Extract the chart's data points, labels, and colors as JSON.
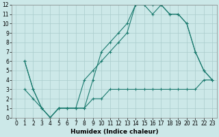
{
  "xlabel": "Humidex (Indice chaleur)",
  "bg_color": "#cce8e8",
  "line_color": "#1a7a6e",
  "grid_color": "#aacccc",
  "xlim": [
    -0.5,
    23.5
  ],
  "ylim": [
    0,
    12
  ],
  "xticks": [
    0,
    1,
    2,
    3,
    4,
    5,
    6,
    7,
    8,
    9,
    10,
    11,
    12,
    13,
    14,
    15,
    16,
    17,
    18,
    19,
    20,
    21,
    22,
    23
  ],
  "yticks": [
    0,
    1,
    2,
    3,
    4,
    5,
    6,
    7,
    8,
    9,
    10,
    11,
    12
  ],
  "line1_x": [
    1,
    2,
    3,
    4,
    5,
    6,
    7,
    8,
    9,
    10,
    11,
    12,
    13,
    14,
    15,
    16,
    17,
    18,
    19,
    20,
    21,
    22,
    23
  ],
  "line1_y": [
    6,
    3,
    1,
    0,
    1,
    1,
    1,
    1,
    4,
    7,
    8,
    9,
    10,
    12,
    12,
    11,
    12,
    11,
    11,
    10,
    7,
    5,
    4
  ],
  "line2_x": [
    1,
    2,
    3,
    4,
    5,
    6,
    7,
    8,
    9,
    10,
    11,
    12,
    13,
    14,
    15,
    16,
    17,
    18,
    19,
    20,
    21,
    22,
    23
  ],
  "line2_y": [
    6,
    3,
    1,
    0,
    1,
    1,
    1,
    4,
    5,
    6,
    7,
    8,
    9,
    12,
    12,
    12,
    12,
    11,
    11,
    10,
    7,
    5,
    4
  ],
  "line3_x": [
    1,
    2,
    3,
    4,
    5,
    6,
    7,
    8,
    9,
    10,
    11,
    12,
    13,
    14,
    15,
    16,
    17,
    18,
    19,
    20,
    21,
    22,
    23
  ],
  "line3_y": [
    3,
    2,
    1,
    0,
    1,
    1,
    1,
    1,
    2,
    2,
    3,
    3,
    3,
    3,
    3,
    3,
    3,
    3,
    3,
    3,
    3,
    4,
    4
  ],
  "tick_fontsize": 5.5,
  "xlabel_fontsize": 6.5
}
